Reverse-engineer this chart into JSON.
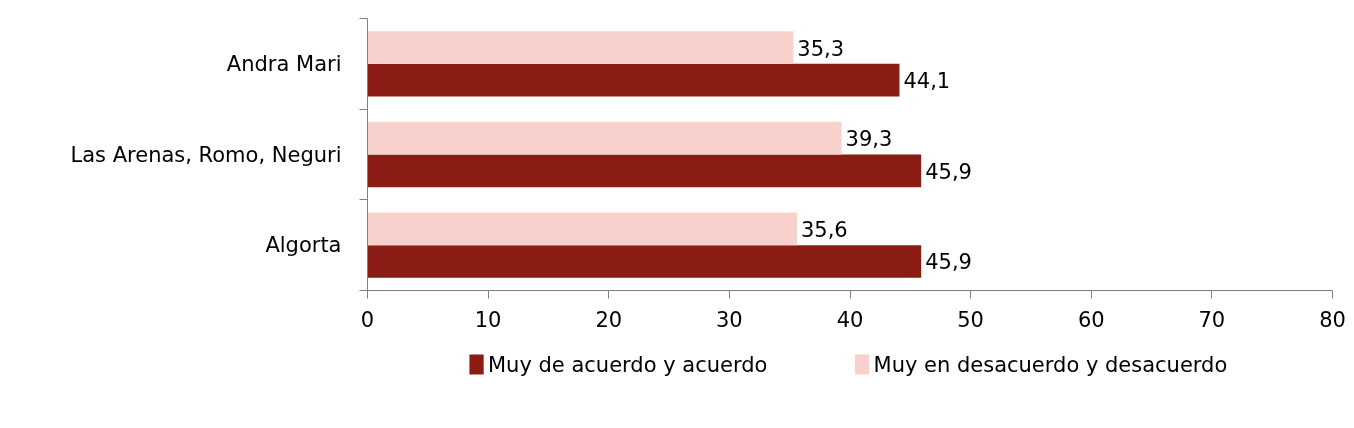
{
  "chart_data": {
    "type": "bar",
    "orientation": "horizontal",
    "categories": [
      "Andra Mari",
      "Las Arenas, Romo, Neguri",
      "Algorta"
    ],
    "series": [
      {
        "name": "Muy de acuerdo y acuerdo",
        "color": "#8b1c13",
        "values": [
          44.1,
          45.9,
          45.9
        ],
        "value_labels": [
          "44,1",
          "45,9",
          "45,9"
        ]
      },
      {
        "name": "Muy en desacuerdo y desacuerdo",
        "color": "#f8d1cd",
        "values": [
          35.3,
          39.3,
          35.6
        ],
        "value_labels": [
          "35,3",
          "39,3",
          "35,6"
        ]
      }
    ],
    "xlim": [
      0,
      80
    ],
    "xticks": [
      0,
      10,
      20,
      30,
      40,
      50,
      60,
      70,
      80
    ],
    "grid": false,
    "legend": "bottom"
  }
}
